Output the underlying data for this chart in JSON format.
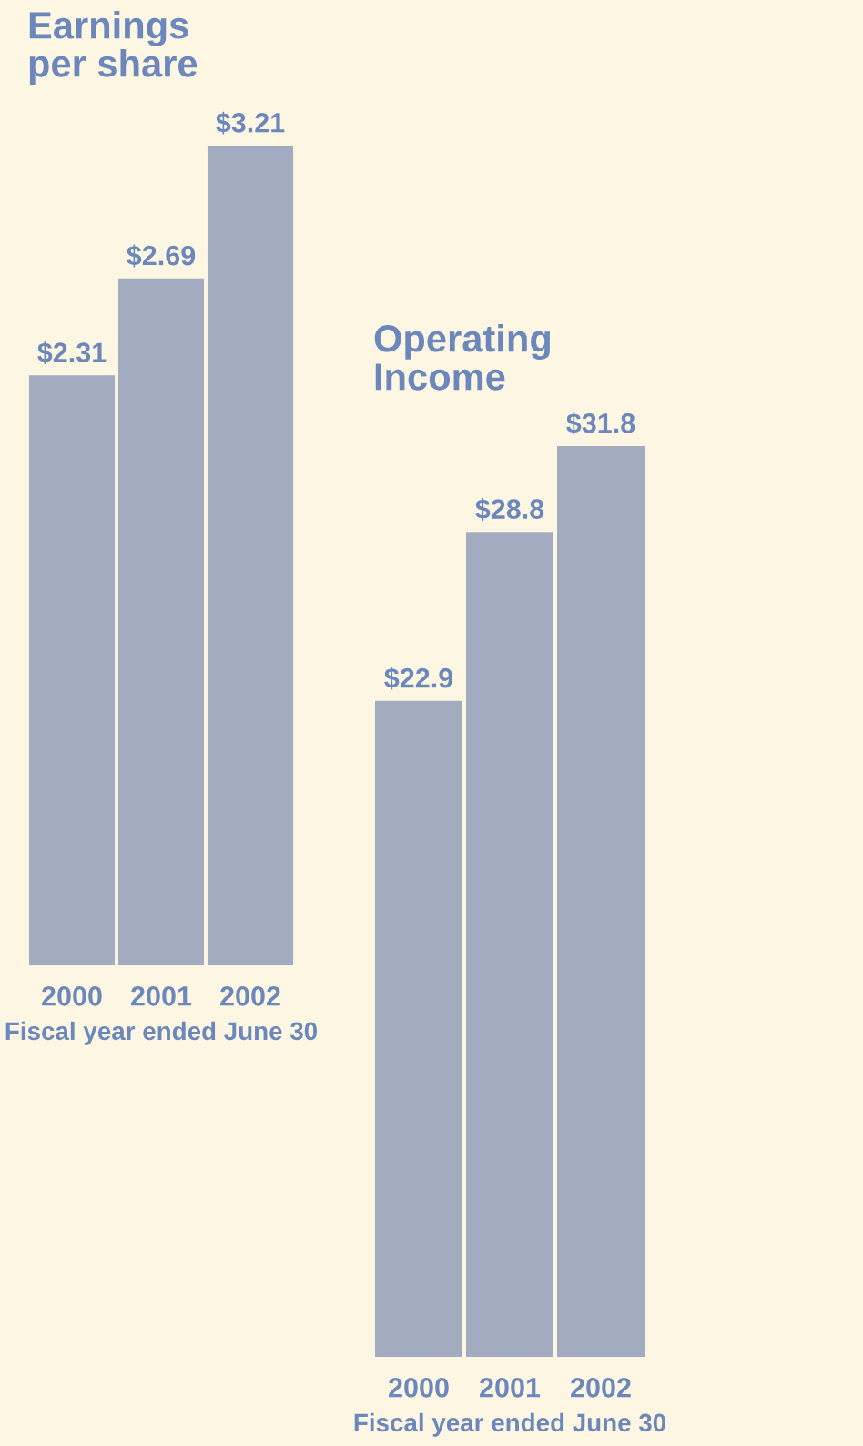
{
  "chart_data": [
    {
      "type": "bar",
      "title": "Earnings per share",
      "xlabel": "Fiscal year ended June 30",
      "categories": [
        "2000",
        "2001",
        "2002"
      ],
      "values": [
        2.31,
        2.69,
        3.21
      ],
      "value_labels": [
        "$2.31",
        "$2.69",
        "$3.21"
      ],
      "color": "#a3abc0",
      "grid": false,
      "legend": false
    },
    {
      "type": "bar",
      "title": "Operating Income",
      "xlabel": "Fiscal year ended June 30",
      "categories": [
        "2000",
        "2001",
        "2002"
      ],
      "values": [
        22.9,
        28.8,
        31.8
      ],
      "value_labels": [
        "$22.9",
        "$28.8",
        "$31.8"
      ],
      "color": "#a3abc0",
      "grid": false,
      "legend": false
    }
  ]
}
